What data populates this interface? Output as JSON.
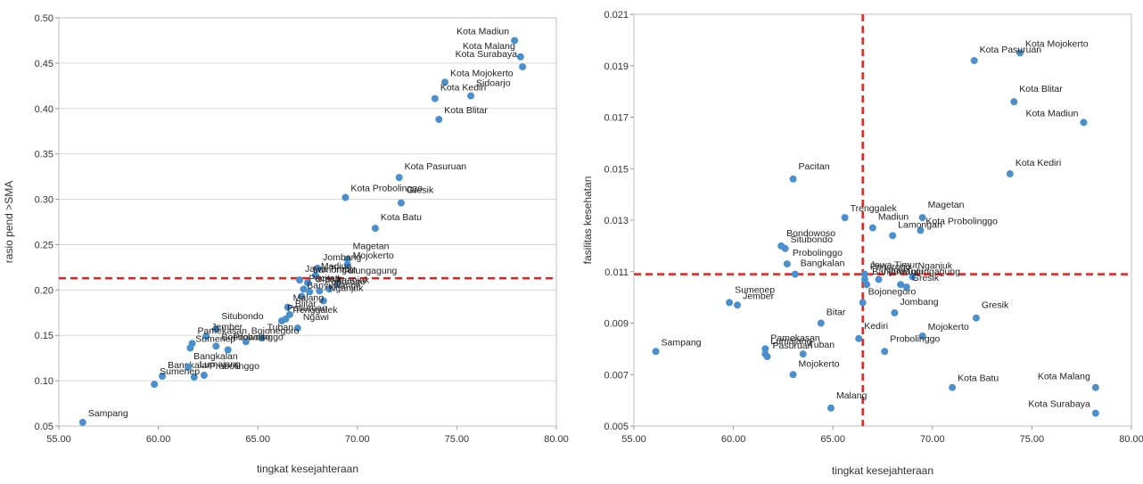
{
  "chart_data": [
    {
      "type": "scatter",
      "xlabel": "tingkat kesejahteraan",
      "ylabel": "rasio pend >SMA",
      "xlim": [
        55,
        80
      ],
      "ylim": [
        0.05,
        0.5
      ],
      "xticks": [
        "55.00",
        "60.00",
        "65.00",
        "70.00",
        "75.00",
        "80.00"
      ],
      "yticks": [
        "0.05",
        "0.10",
        "0.15",
        "0.20",
        "0.25",
        "0.30",
        "0.35",
        "0.40",
        "0.45",
        "0.50"
      ],
      "grid": true,
      "series_color": "#4a90d0",
      "reference_line_color": "#e8201e",
      "reference_lines": {
        "y": 0.213
      },
      "points": [
        {
          "label": "Kota Madiun",
          "x": 77.9,
          "y": 0.475
        },
        {
          "label": "Kota Malang",
          "x": 78.2,
          "y": 0.457
        },
        {
          "label": "Kota Surabaya",
          "x": 78.3,
          "y": 0.446
        },
        {
          "label": "Kota Mojokerto",
          "x": 74.4,
          "y": 0.429
        },
        {
          "label": "Kota Kediri",
          "x": 73.9,
          "y": 0.411
        },
        {
          "label": "Sidoarjo",
          "x": 75.7,
          "y": 0.414
        },
        {
          "label": "Kota Blitar",
          "x": 74.1,
          "y": 0.388
        },
        {
          "label": "Kota Pasuruan",
          "x": 72.1,
          "y": 0.324
        },
        {
          "label": "Gresik",
          "x": 72.2,
          "y": 0.296
        },
        {
          "label": "Kota Probolinggo",
          "x": 69.4,
          "y": 0.302
        },
        {
          "label": "Kota Batu",
          "x": 70.9,
          "y": 0.268
        },
        {
          "label": "Magetan",
          "x": 69.5,
          "y": 0.234
        },
        {
          "label": "Mojokerto",
          "x": 69.5,
          "y": 0.228
        },
        {
          "label": "Jombang",
          "x": 68.0,
          "y": 0.224
        },
        {
          "label": "Tulungagung",
          "x": 69.0,
          "y": 0.207
        },
        {
          "label": "Madiun",
          "x": 67.9,
          "y": 0.216
        },
        {
          "label": "Jawa Timur",
          "x": 67.1,
          "y": 0.211
        },
        {
          "label": "Lamongan",
          "x": 67.5,
          "y": 0.208
        },
        {
          "label": "Nganjuk",
          "x": 68.6,
          "y": 0.201
        },
        {
          "label": "Pacitan",
          "x": 67.3,
          "y": 0.201
        },
        {
          "label": "Gresik",
          "x": 67.6,
          "y": 0.198
        },
        {
          "label": "Ponorogo",
          "x": 68.1,
          "y": 0.199
        },
        {
          "label": "Banyuwangi",
          "x": 67.2,
          "y": 0.193
        },
        {
          "label": "Nganjuk",
          "x": 68.3,
          "y": 0.188
        },
        {
          "label": "Malang",
          "x": 66.5,
          "y": 0.181
        },
        {
          "label": "Blitar",
          "x": 66.6,
          "y": 0.173
        },
        {
          "label": "Pasuruan",
          "x": 66.2,
          "y": 0.166
        },
        {
          "label": "Trenggalek",
          "x": 66.4,
          "y": 0.168
        },
        {
          "label": "Ngawi",
          "x": 67.0,
          "y": 0.158
        },
        {
          "label": "Situbondo",
          "x": 62.9,
          "y": 0.157
        },
        {
          "label": "Jember",
          "x": 62.4,
          "y": 0.149
        },
        {
          "label": "Tuban",
          "x": 65.2,
          "y": 0.147
        },
        {
          "label": "Pamekasan",
          "x": 61.7,
          "y": 0.141
        },
        {
          "label": "Bondowoso",
          "x": 62.9,
          "y": 0.138
        },
        {
          "label": "Bojonegoro",
          "x": 64.4,
          "y": 0.143
        },
        {
          "label": "Probolinggo",
          "x": 63.5,
          "y": 0.134
        },
        {
          "label": "Sumenep",
          "x": 61.6,
          "y": 0.136
        },
        {
          "label": "Bangkalan",
          "x": 60.2,
          "y": 0.105
        },
        {
          "label": "Lumajang",
          "x": 61.8,
          "y": 0.104
        },
        {
          "label": "Probolinggo",
          "x": 62.3,
          "y": 0.106
        },
        {
          "label": "Bangkalan",
          "x": 61.5,
          "y": 0.115
        },
        {
          "label": "Sumenep",
          "x": 59.8,
          "y": 0.096
        },
        {
          "label": "Sampang",
          "x": 56.2,
          "y": 0.054
        }
      ]
    },
    {
      "type": "scatter",
      "xlabel": "tingkat kesejahteraan",
      "ylabel": "fasilitas kesehatan",
      "xlim": [
        55,
        80
      ],
      "ylim": [
        0.005,
        0.021
      ],
      "xticks": [
        "55.00",
        "60.00",
        "65.00",
        "70.00",
        "75.00",
        "80.00"
      ],
      "yticks": [
        "0.005",
        "0.007",
        "0.009",
        "0.011",
        "0.013",
        "0.015",
        "0.017",
        "0.019",
        "0.021"
      ],
      "grid": false,
      "series_color": "#4a90d0",
      "reference_line_color": "#e8201e",
      "reference_lines": {
        "x": 66.5,
        "y": 0.0109
      },
      "points": [
        {
          "label": "Kota Mojokerto",
          "x": 74.4,
          "y": 0.0195
        },
        {
          "label": "Kota Pasuruan",
          "x": 72.1,
          "y": 0.0192
        },
        {
          "label": "Kota Blitar",
          "x": 74.1,
          "y": 0.0176
        },
        {
          "label": "Kota Madiun",
          "x": 77.6,
          "y": 0.0168
        },
        {
          "label": "Kota Kediri",
          "x": 73.9,
          "y": 0.0148
        },
        {
          "label": "Pacitan",
          "x": 63.0,
          "y": 0.0146
        },
        {
          "label": "Trenggalek",
          "x": 65.6,
          "y": 0.0131
        },
        {
          "label": "Madiun",
          "x": 67.0,
          "y": 0.0127
        },
        {
          "label": "Magetan",
          "x": 69.5,
          "y": 0.0131
        },
        {
          "label": "Kota Probolinggo",
          "x": 69.4,
          "y": 0.0126
        },
        {
          "label": "Lamongan",
          "x": 68.0,
          "y": 0.0124
        },
        {
          "label": "Bondowoso",
          "x": 62.4,
          "y": 0.012
        },
        {
          "label": "Situbondo",
          "x": 62.6,
          "y": 0.0119
        },
        {
          "label": "Probolinggo",
          "x": 62.7,
          "y": 0.0113
        },
        {
          "label": "Ponorogo",
          "x": 66.6,
          "y": 0.0107
        },
        {
          "label": "Ngawi",
          "x": 67.3,
          "y": 0.0107
        },
        {
          "label": "Nganjuk",
          "x": 69.0,
          "y": 0.0108
        },
        {
          "label": "Tulungagung",
          "x": 68.4,
          "y": 0.0105
        },
        {
          "label": "Jawa Timur",
          "x": 66.6,
          "y": 0.0109
        },
        {
          "label": "Bangkalan",
          "x": 63.1,
          "y": 0.0109
        },
        {
          "label": "Banyuwangi",
          "x": 66.7,
          "y": 0.0105
        },
        {
          "label": "Gresik",
          "x": 68.7,
          "y": 0.0104
        },
        {
          "label": "Bojonegoro",
          "x": 66.5,
          "y": 0.0098
        },
        {
          "label": "Sumenep",
          "x": 59.8,
          "y": 0.0098
        },
        {
          "label": "Jember",
          "x": 60.2,
          "y": 0.0097
        },
        {
          "label": "Jombang",
          "x": 68.1,
          "y": 0.0094
        },
        {
          "label": "Gresik",
          "x": 72.2,
          "y": 0.0092
        },
        {
          "label": "Mojokerto",
          "x": 69.5,
          "y": 0.0085
        },
        {
          "label": "Bitar",
          "x": 64.4,
          "y": 0.009
        },
        {
          "label": "Kediri",
          "x": 66.3,
          "y": 0.0084
        },
        {
          "label": "Sampang",
          "x": 56.1,
          "y": 0.0079
        },
        {
          "label": "Pamekasan",
          "x": 61.6,
          "y": 0.008
        },
        {
          "label": "Lumajang",
          "x": 61.6,
          "y": 0.0078
        },
        {
          "label": "Tuban",
          "x": 63.5,
          "y": 0.0078
        },
        {
          "label": "Pasuruan",
          "x": 61.7,
          "y": 0.0077
        },
        {
          "label": "Probolinggo",
          "x": 67.6,
          "y": 0.0079
        },
        {
          "label": "Kota Batu",
          "x": 71.0,
          "y": 0.0065
        },
        {
          "label": "Kota Malang",
          "x": 78.2,
          "y": 0.0065
        },
        {
          "label": "Malang",
          "x": 64.9,
          "y": 0.0057
        },
        {
          "label": "Kota Surabaya",
          "x": 78.2,
          "y": 0.0055
        },
        {
          "label": "Mojokerto",
          "x": 63.0,
          "y": 0.007
        }
      ]
    }
  ]
}
